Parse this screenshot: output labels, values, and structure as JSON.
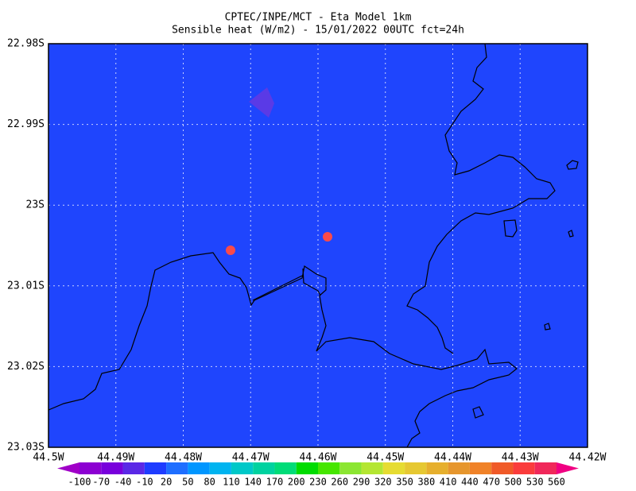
{
  "chart_data": {
    "type": "map",
    "title": "CPTEC/INPE/MCT -  Eta Model 1km",
    "subtitle": "Sensible heat (W/m2) - 15/01/2022 00UTC fct=24h",
    "background_color": "#1f45fd",
    "grid": true,
    "xlim": [
      -44.5,
      -44.42
    ],
    "ylim": [
      -23.03,
      -22.98
    ],
    "xticks": [
      {
        "value": -44.5,
        "label": "44.5W"
      },
      {
        "value": -44.49,
        "label": "44.49W"
      },
      {
        "value": -44.48,
        "label": "44.48W"
      },
      {
        "value": -44.47,
        "label": "44.47W"
      },
      {
        "value": -44.46,
        "label": "44.46W"
      },
      {
        "value": -44.45,
        "label": "44.45W"
      },
      {
        "value": -44.44,
        "label": "44.44W"
      },
      {
        "value": -44.43,
        "label": "44.43W"
      },
      {
        "value": -44.42,
        "label": "44.42W"
      }
    ],
    "yticks": [
      {
        "value": -22.98,
        "label": "22.98S"
      },
      {
        "value": -22.99,
        "label": "22.99S"
      },
      {
        "value": -23.0,
        "label": "23S"
      },
      {
        "value": -23.01,
        "label": "23.01S"
      },
      {
        "value": -23.02,
        "label": "23.02S"
      },
      {
        "value": -23.03,
        "label": "23.03S"
      }
    ],
    "colorbar": {
      "levels": [
        -100,
        -70,
        -40,
        -10,
        20,
        50,
        80,
        110,
        140,
        170,
        200,
        230,
        260,
        290,
        320,
        350,
        380,
        410,
        440,
        470,
        500,
        530,
        560
      ],
      "colors": [
        "#a000c8",
        "#8c00d2",
        "#7800dc",
        "#5a28e6",
        "#1e3cff",
        "#1e6eff",
        "#0096ff",
        "#00b4f0",
        "#00c8c8",
        "#00d2a0",
        "#00dc78",
        "#00dc00",
        "#46e600",
        "#8ce632",
        "#b4e632",
        "#e6dc32",
        "#e6c832",
        "#e6af2d",
        "#e6962d",
        "#f08228",
        "#f05a28",
        "#fa3c3c",
        "#f0285a",
        "#f00082"
      ]
    }
  }
}
